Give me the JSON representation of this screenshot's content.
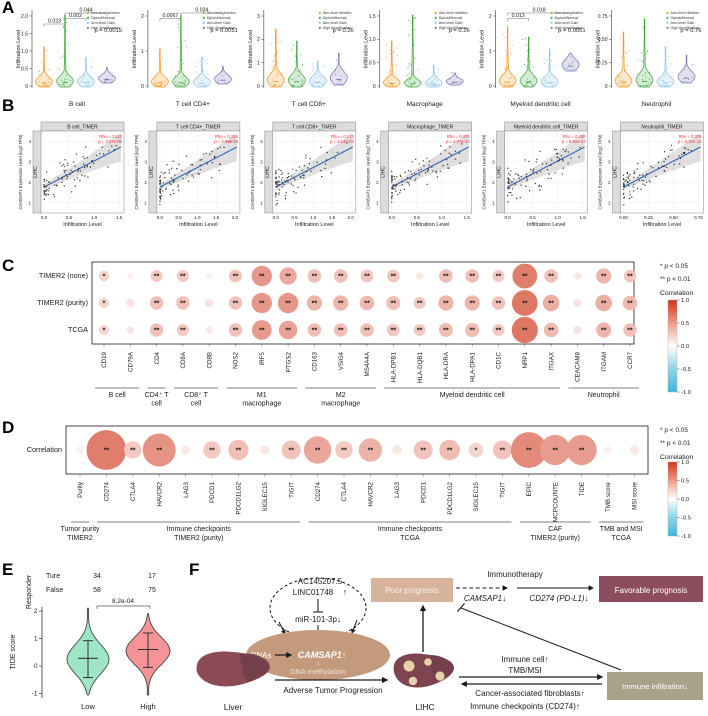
{
  "panel_letters": {
    "a": "A",
    "b": "B",
    "c": "C",
    "d": "D",
    "e": "E",
    "f": "F"
  },
  "colors": {
    "arm_del": "#F7941D",
    "diploid": "#3AA439",
    "arm_gain": "#8EC4DE",
    "high_amp": "#7472B4",
    "trend_line": "#3A66B0",
    "annotation": "#FF2E2E",
    "corr_pos": "#D03420",
    "corr_neg": "#3FB5DC",
    "tide_low": "#9FE6C9",
    "tide_high": "#F59396",
    "f_ellipse": "#C49A7C",
    "f_poor": "#D8B39C",
    "f_favorable": "#8C4D5E",
    "f_infiltration": "#A9A28A",
    "f_liver": "#8A4B55",
    "f_liver_dark": "#73404C",
    "f_lihc": "#7E4450",
    "f_spot": "#E6D2A9"
  },
  "panelA": {
    "ylabel": "Infiltration Level",
    "legend": [
      "Arm-level deletion",
      "Diploid/Normal",
      "Arm-level Gain",
      "High Amplification"
    ],
    "plots": [
      {
        "name": "B cell",
        "yticks": [
          "0",
          "0.5",
          "1.0",
          "1.5",
          "2.0"
        ],
        "p": "p = 0.0015",
        "brackets": [
          {
            "label": "0.023",
            "from": 0,
            "to": 1,
            "level": 0
          },
          {
            "label": "0.002",
            "from": 1,
            "to": 2,
            "level": 1
          },
          {
            "label": "0.044",
            "from": 1,
            "to": 3,
            "level": 2
          }
        ]
      },
      {
        "name": "T cell CD4+",
        "yticks": [
          "0",
          "1",
          "2"
        ],
        "p": "p = 0.0051",
        "brackets": [
          {
            "label": "0.0067",
            "from": 0,
            "to": 1,
            "level": 1
          },
          {
            "label": "0.034",
            "from": 1,
            "to": 3,
            "level": 2
          }
        ]
      },
      {
        "name": "T cell CD8+",
        "yticks": [
          "0",
          "1",
          "2",
          "3"
        ],
        "p": "p = 0.26",
        "brackets": []
      },
      {
        "name": "Macrophage",
        "yticks": [
          "0",
          "0.5",
          "1.0",
          "1.5"
        ],
        "p": "p = 0.26",
        "brackets": []
      },
      {
        "name": "Myeloid dendritic cell",
        "yticks": [
          "0",
          "1",
          "2"
        ],
        "p": "p = 0.0051",
        "brackets": [
          {
            "label": "0.013",
            "from": 0,
            "to": 1,
            "level": 1
          },
          {
            "label": "0.018",
            "from": 0,
            "to": 3,
            "level": 2
          }
        ]
      },
      {
        "name": "Neutrophil",
        "yticks": [
          "0",
          "0.25",
          "0.50",
          "0.75"
        ],
        "p": "p = 0.76",
        "brackets": []
      }
    ]
  },
  "panelB": {
    "ylabel": "CAMSAP1 Expression Level (log2 TPM)",
    "xlabel": "Infiltration Level",
    "strip": "LIHC",
    "yticks": [
      "1",
      "2",
      "3",
      "4"
    ],
    "plots": [
      {
        "title": "B cell_TIMER",
        "rho": "Rho = 0.242",
        "p": "p = 3.27e-06",
        "xticks": [
          "0.0",
          "0.5",
          "1.0",
          "1.5"
        ]
      },
      {
        "title": "T cell CD4+_TIMER",
        "rho": "Rho = 0.224",
        "p": "p = 2.08e-05",
        "xticks": [
          "0.0",
          "0.5",
          "1.0",
          "1.5",
          "2.0"
        ]
      },
      {
        "title": "T cell CD8+_TIMER",
        "rho": "Rho = 0.174",
        "p": "p = 1.14e-03",
        "xticks": [
          "0.0",
          "0.5",
          "1.0",
          "1.5",
          "2.0"
        ]
      },
      {
        "title": "Macrophage_TIMER",
        "rho": "Rho = 0.370",
        "p": "p = 3.07e-13",
        "xticks": [
          "0.0",
          "0.5",
          "1.0",
          "1.5"
        ]
      },
      {
        "title": "Myeloid dendritic cell_TIMER",
        "rho": "Rho = 0.420",
        "p": "p = 6.90e-17",
        "xticks": [
          "0.0",
          "0.5",
          "1.0",
          "1.5"
        ]
      },
      {
        "title": "Neutrophil_TIMER",
        "rho": "Rho = 0.376",
        "p": "p = 5.57e-13",
        "xticks": [
          "0.00",
          "0.25",
          "0.50",
          "0.75"
        ]
      }
    ]
  },
  "panelC": {
    "rows": [
      "TIMER2 (none)",
      "TIMER2 (purity)",
      "TCGA"
    ],
    "genes": [
      "CD19",
      "CD79A",
      "CD4",
      "CD8A",
      "CD8B",
      "NOS2",
      "IRF5",
      "PTGS2",
      "CD163",
      "VSIG4",
      "MS4A4A",
      "HLA-DPB1",
      "HLA-DQB1",
      "HLA-DRA",
      "HLA-DPA1",
      "CD1C",
      "NRP1",
      "ITGAX",
      "CEACAM8",
      "ITGAM",
      "CCR7"
    ],
    "values": [
      [
        0.17,
        0.05,
        0.22,
        0.22,
        0.05,
        0.25,
        0.48,
        0.38,
        0.27,
        0.27,
        0.24,
        0.24,
        0.08,
        0.27,
        0.27,
        0.22,
        0.62,
        0.27,
        0.08,
        0.32,
        0.24
      ],
      [
        0.17,
        0.1,
        0.26,
        0.26,
        0.1,
        0.26,
        0.48,
        0.48,
        0.32,
        0.32,
        0.3,
        0.28,
        0.22,
        0.32,
        0.32,
        0.26,
        0.65,
        0.36,
        0.1,
        0.36,
        0.3
      ],
      [
        0.16,
        0.08,
        0.26,
        0.22,
        0.08,
        0.26,
        0.46,
        0.42,
        0.27,
        0.27,
        0.27,
        0.24,
        0.22,
        0.28,
        0.28,
        0.22,
        0.66,
        0.3,
        0.1,
        0.32,
        0.26
      ]
    ],
    "sig": [
      [
        "*",
        "",
        "**",
        "**",
        "",
        "**",
        "**",
        "**",
        "**",
        "**",
        "**",
        "**",
        "",
        "**",
        "**",
        "**",
        "**",
        "**",
        "",
        "**",
        "**"
      ],
      [
        "*",
        "",
        "**",
        "**",
        "",
        "**",
        "**",
        "**",
        "**",
        "**",
        "**",
        "**",
        "**",
        "**",
        "**",
        "**",
        "**",
        "**",
        "",
        "**",
        "**"
      ],
      [
        "*",
        "",
        "**",
        "**",
        "",
        "**",
        "**",
        "**",
        "**",
        "**",
        "**",
        "**",
        "**",
        "**",
        "**",
        "**",
        "**",
        "**",
        "",
        "**",
        "**"
      ]
    ],
    "groups": [
      {
        "label": "B cell",
        "from": 0,
        "to": 1
      },
      {
        "label": "CD4⁺ T\ncell",
        "from": 2,
        "to": 2
      },
      {
        "label": "CD8⁺ T\ncell",
        "from": 3,
        "to": 4
      },
      {
        "label": "M1\nmacrophage",
        "from": 5,
        "to": 7
      },
      {
        "label": "M2\nmacrophage",
        "from": 8,
        "to": 10
      },
      {
        "label": "Myeloid dendritic cell",
        "from": 11,
        "to": 17
      },
      {
        "label": "Neutrophil",
        "from": 18,
        "to": 20
      }
    ],
    "legend": {
      "p1": "* p < 0.05",
      "p2": "** p < 0.01",
      "corr": "Correlation",
      "ticks": [
        "1.0",
        "0.5",
        "0.0",
        "-0.5",
        "-1.0"
      ]
    }
  },
  "panelD": {
    "row_label": "Correlation",
    "genes": [
      "Purity",
      "CD274",
      "CTLA4",
      "HAVCR2",
      "LAG3",
      "PDCD1",
      "PDCD1LG2",
      "SIGLEC15",
      "TIGIT",
      "CD274",
      "CTLA4",
      "HAVCR2",
      "LAG3",
      "PDCD1",
      "PDCD1LG2",
      "SIGLEC15",
      "TIGIT",
      "EPIC",
      "MCPCOUNTE",
      "TIDE",
      "TMB score",
      "MSI score"
    ],
    "values": [
      0.05,
      0.62,
      0.22,
      0.5,
      0.08,
      0.22,
      0.27,
      0.08,
      0.25,
      0.4,
      0.22,
      0.33,
      0.08,
      0.25,
      0.28,
      0.17,
      0.25,
      0.55,
      0.45,
      0.45,
      0.05,
      0.08
    ],
    "sig": [
      "",
      "**",
      "**",
      "**",
      "",
      "**",
      "**",
      "",
      "**",
      "**",
      "**",
      "**",
      "",
      "**",
      "**",
      "*",
      "**",
      "**",
      "**",
      "**",
      "",
      ""
    ],
    "groups": [
      {
        "label": "Tumor purity\nTIMER2",
        "from": 0,
        "to": 0
      },
      {
        "label": "Immune checkpoints\nTIMER2 (purity)",
        "from": 1,
        "to": 8
      },
      {
        "label": "Immune checkpoints\nTCGA",
        "from": 9,
        "to": 16
      },
      {
        "label": "CAF\nTIMER2 (purity)",
        "from": 17,
        "to": 19
      },
      {
        "label": "TMB and MSI\nTCGA",
        "from": 20,
        "to": 21
      }
    ],
    "legend": {
      "p1": "* p < 0.05",
      "p2": "** p < 0.01",
      "corr": "Correlation",
      "ticks": [
        "1.0",
        "0.5",
        "0.0",
        "-0.5",
        "-1.0"
      ]
    }
  },
  "panelE": {
    "responder_label": "Responder",
    "rows": [
      {
        "label": "Ture",
        "low": "34",
        "high": "17"
      },
      {
        "label": "False",
        "low": "58",
        "high": "75"
      }
    ],
    "p": "8.2e-04",
    "ylabel": "TIDE score",
    "yticks": [
      "-1",
      "0",
      "1",
      "2"
    ],
    "categories": [
      "Low",
      "High"
    ]
  },
  "panelF": {
    "lnc1": "AC145207.5",
    "lnc2": "LINC01748",
    "lnc_arrow": "↑",
    "mir": "miR-101-3p↓",
    "cnas": "CNAs",
    "camsap1": "CAMSAP1↑",
    "dna": "DNA methylation",
    "liver": "Liver",
    "lihc": "LIHC",
    "adverse": "Adverse Tumor Progression",
    "poor": "Poor prognosis",
    "immunotherapy": "Immunotherapy",
    "camsap1_down": "CAMSAP1↓",
    "cd274_down": "CD274 (PD-L1)↓",
    "favorable": "Favorable prognosis",
    "immune_cell": "Immune cell↑",
    "tmb": "TMB/MSI",
    "caf": "Cancer-associated fibroblasts↑",
    "checkpoints": "Immune checkpoints (CD274)↑",
    "infiltration": "Immune infiltration↓"
  }
}
